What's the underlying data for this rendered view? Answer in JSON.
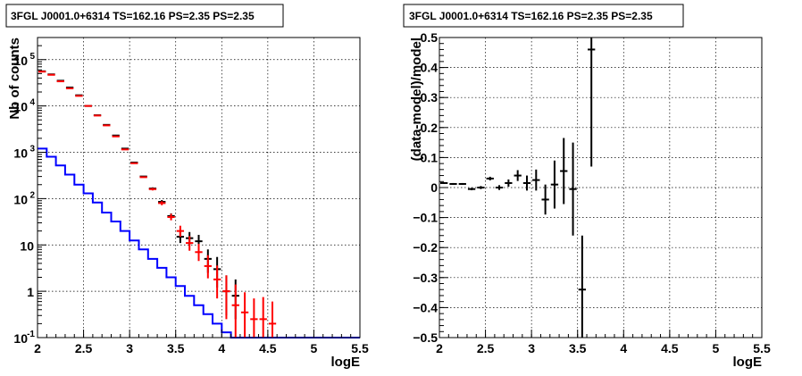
{
  "chart_data": [
    {
      "type": "line",
      "title": "3FGL J0001.0+6314 TS=162.16 PS=2.35 PS=2.35",
      "xlabel": "logE",
      "ylabel": "Nb of counts",
      "xlim": [
        2,
        5.5
      ],
      "ylim": [
        0.1,
        300000
      ],
      "yscale": "log",
      "grid": true,
      "xticks": [
        "2",
        "2.5",
        "3",
        "3.5",
        "4",
        "4.5",
        "5",
        "5.5"
      ],
      "yticks": [
        {
          "v": 0.1,
          "label": "10",
          "exp": "-1"
        },
        {
          "v": 1,
          "label": "1",
          "exp": ""
        },
        {
          "v": 10,
          "label": "10",
          "exp": ""
        },
        {
          "v": 100,
          "label": "10",
          "exp": "2"
        },
        {
          "v": 1000,
          "label": "10",
          "exp": "3"
        },
        {
          "v": 10000,
          "label": "10",
          "exp": "4"
        },
        {
          "v": 100000,
          "label": "10",
          "exp": "5"
        }
      ],
      "series": [
        {
          "color": "#0000ff",
          "style": "step",
          "bin_width": 0.1,
          "x": [
            2.05,
            2.15,
            2.25,
            2.35,
            2.45,
            2.55,
            2.65,
            2.75,
            2.85,
            2.95,
            3.05,
            3.15,
            3.25,
            3.35,
            3.45,
            3.55,
            3.65,
            3.75,
            3.85,
            3.95,
            4.05,
            4.15,
            4.25,
            4.35,
            4.45,
            4.55,
            4.65,
            4.75,
            4.85,
            4.95,
            5.05,
            5.15,
            5.25,
            5.35,
            5.45
          ],
          "values": [
            1200,
            800,
            520,
            330,
            200,
            130,
            82,
            50,
            32,
            20,
            12.5,
            8,
            5,
            3.2,
            2,
            1.3,
            0.8,
            0.5,
            0.32,
            0.2,
            0.13,
            0.1,
            0.1,
            0.1,
            0.1,
            0.1,
            0.1,
            0.1,
            0.1,
            0.1,
            0.1,
            0.1,
            0.1,
            0.1,
            0.1
          ]
        },
        {
          "color": "#000000",
          "style": "errorbar",
          "x": [
            2.05,
            2.15,
            2.25,
            2.35,
            2.45,
            2.55,
            2.65,
            2.75,
            2.85,
            2.95,
            3.05,
            3.15,
            3.25,
            3.35,
            3.45,
            3.55,
            3.65,
            3.75,
            3.85,
            3.95,
            4.05,
            4.15
          ],
          "values": [
            56000,
            48000,
            35000,
            25000,
            17000,
            10000,
            6300,
            3900,
            2300,
            1200,
            600,
            300,
            165,
            85,
            42,
            15,
            14,
            12,
            5,
            3,
            1,
            0.8
          ],
          "err_lo": [
            0,
            0,
            0,
            0,
            0,
            0,
            0,
            0,
            0,
            0,
            0,
            0,
            10,
            8,
            6,
            4,
            4,
            4,
            2.5,
            1.8,
            0.7,
            0.55
          ],
          "err_hi": [
            0,
            0,
            0,
            0,
            0,
            0,
            0,
            0,
            0,
            0,
            0,
            0,
            10,
            8,
            6,
            5,
            5,
            4.5,
            3,
            2.5,
            1.2,
            1
          ]
        },
        {
          "color": "#ff0000",
          "style": "errorbar",
          "x": [
            2.05,
            2.15,
            2.25,
            2.35,
            2.45,
            2.55,
            2.65,
            2.75,
            2.85,
            2.95,
            3.05,
            3.15,
            3.25,
            3.35,
            3.45,
            3.55,
            3.65,
            3.75,
            3.85,
            3.95,
            4.05,
            4.15,
            4.25,
            4.35,
            4.45,
            4.55
          ],
          "values": [
            55000,
            47000,
            34000,
            24000,
            16500,
            10000,
            6200,
            3800,
            2200,
            1150,
            580,
            290,
            160,
            80,
            40,
            20,
            11,
            7,
            3.5,
            1.8,
            1,
            0.5,
            0.35,
            0.25,
            0.25,
            0.2
          ],
          "err_lo": [
            0,
            0,
            0,
            0,
            0,
            0,
            0,
            0,
            0,
            0,
            0,
            0,
            10,
            8,
            6,
            5,
            3.5,
            2.5,
            1.6,
            1.1,
            0.75,
            0.4,
            0.25,
            0.15,
            0.15,
            0.1
          ],
          "err_hi": [
            0,
            0,
            0,
            0,
            0,
            0,
            0,
            0,
            0,
            0,
            0,
            0,
            10,
            8,
            7,
            6,
            4.5,
            3.5,
            2.5,
            1.8,
            1.2,
            0.9,
            0.6,
            0.45,
            0.5,
            0.4
          ]
        }
      ]
    },
    {
      "type": "scatter",
      "title": "3FGL J0001.0+6314 TS=162.16 PS=2.35 PS=2.35",
      "xlabel": "logE",
      "ylabel": "(data-model)/model",
      "xlim": [
        2,
        5.5
      ],
      "ylim": [
        -0.5,
        0.5
      ],
      "grid": true,
      "xticks": [
        "2",
        "2.5",
        "3",
        "3.5",
        "4",
        "4.5",
        "5",
        "5.5"
      ],
      "yticks": [
        "0.5",
        "0.4",
        "0.3",
        "0.2",
        "0.1",
        "0",
        "−0.1",
        "−0.2",
        "−0.3",
        "−0.4",
        "−0.5"
      ],
      "yticks_values": [
        0.5,
        0.4,
        0.3,
        0.2,
        0.1,
        0,
        -0.1,
        -0.2,
        -0.3,
        -0.4,
        -0.5
      ],
      "series": [
        {
          "color": "#000000",
          "style": "errorbar",
          "x": [
            2.05,
            2.15,
            2.25,
            2.35,
            2.45,
            2.55,
            2.65,
            2.75,
            2.85,
            2.95,
            3.05,
            3.15,
            3.25,
            3.35,
            3.45,
            3.55,
            3.65
          ],
          "values": [
            0.015,
            0.012,
            0.012,
            -0.005,
            0.0,
            0.03,
            0.0,
            0.015,
            0.04,
            0.015,
            0.025,
            -0.04,
            0.01,
            0.055,
            -0.005,
            -0.34,
            0.46
          ],
          "err": [
            0.003,
            0.003,
            0.003,
            0.004,
            0.005,
            0.006,
            0.008,
            0.012,
            0.018,
            0.025,
            0.035,
            0.05,
            0.08,
            0.11,
            0.155,
            0.18,
            0.39
          ]
        }
      ]
    }
  ]
}
